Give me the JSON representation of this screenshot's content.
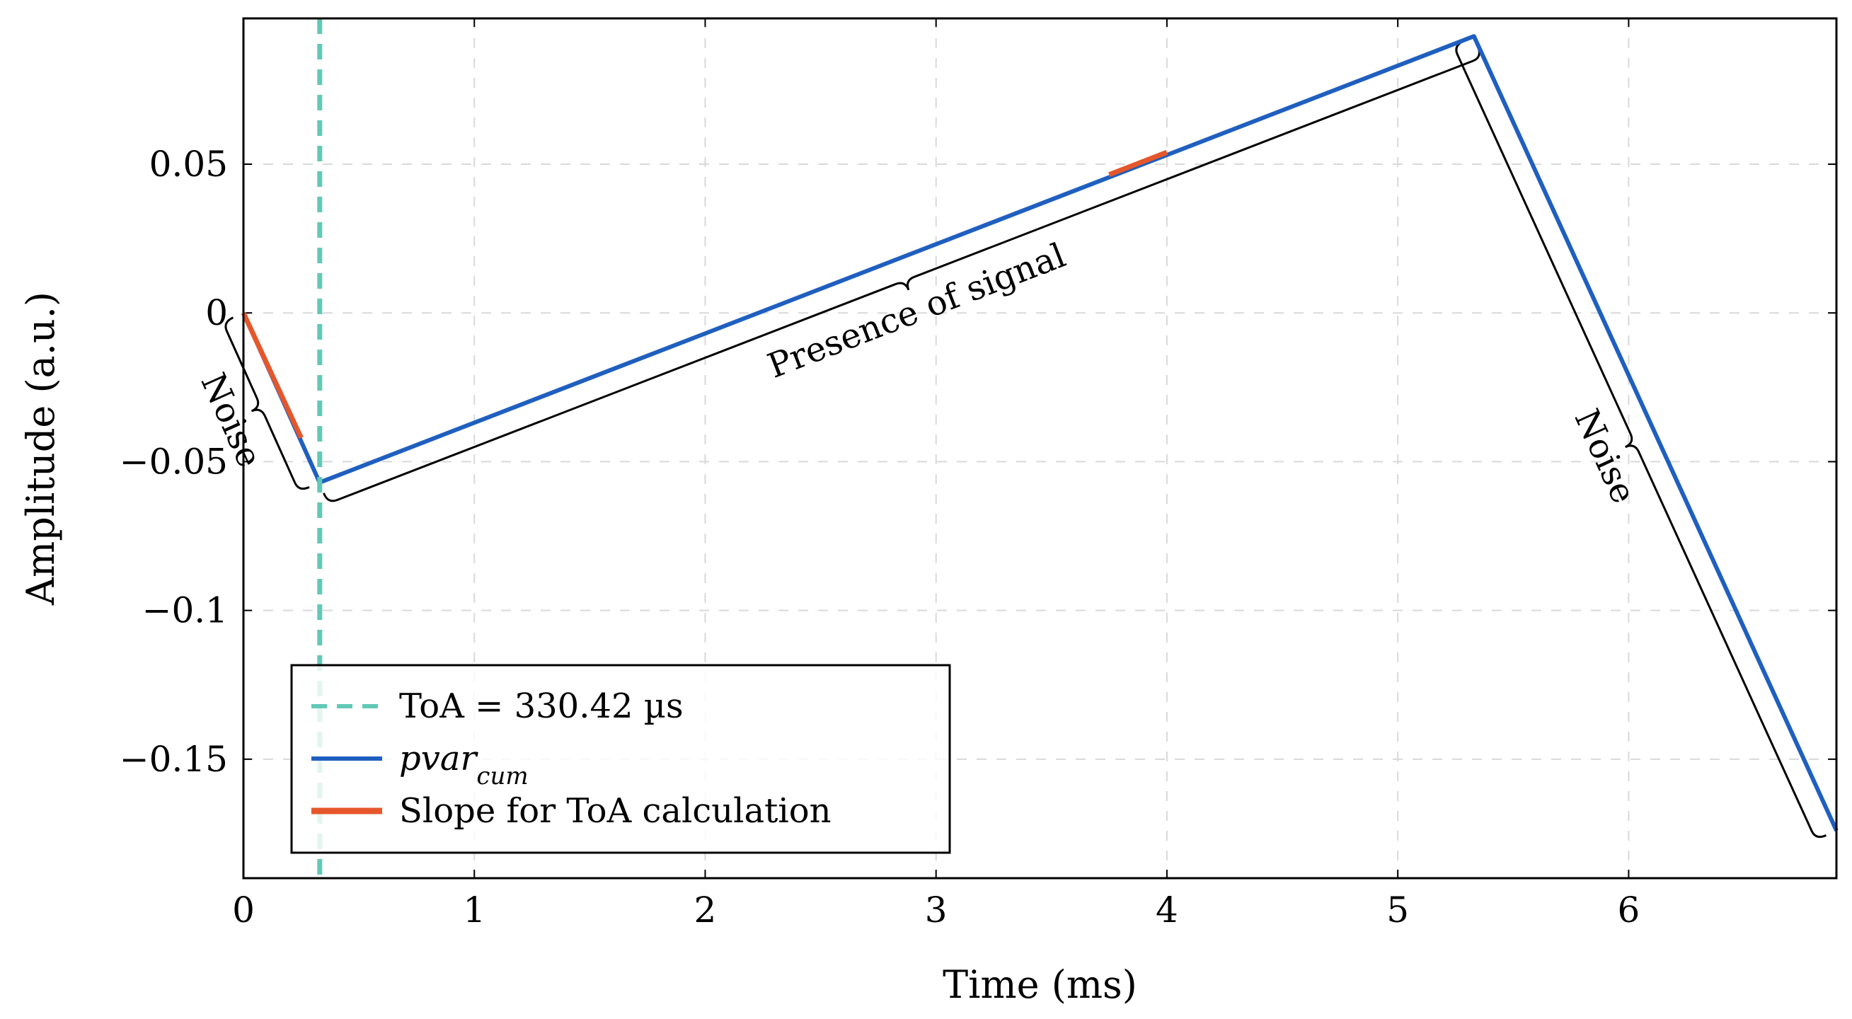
{
  "chart_data": {
    "type": "line",
    "xlabel": "Time (ms)",
    "ylabel": "Amplitude (a.u.)",
    "xlim": [
      0,
      6.9
    ],
    "ylim": [
      -0.19,
      0.099
    ],
    "grid": true,
    "x_ticks": [
      0,
      1,
      2,
      3,
      4,
      5,
      6
    ],
    "x_tick_labels": [
      "0",
      "1",
      "2",
      "3",
      "4",
      "5",
      "6"
    ],
    "y_ticks": [
      0.05,
      0,
      -0.05,
      -0.1,
      -0.15
    ],
    "y_tick_labels": [
      "0.05",
      "0",
      "−0.05",
      "−0.1",
      "−0.15"
    ],
    "series": [
      {
        "name": "pvar_cum",
        "color": "#1f5fbf",
        "x": [
          0,
          0.33,
          5.33,
          6.9
        ],
        "y": [
          0,
          -0.057,
          0.093,
          -0.174
        ]
      },
      {
        "name": "Slope for ToA calculation",
        "color": "#e5572b",
        "segments": [
          {
            "x": [
              0,
              0.25
            ],
            "y": [
              0,
              -0.042
            ]
          },
          {
            "x": [
              3.75,
              4.0
            ],
            "y": [
              0.0465,
              0.054
            ]
          }
        ]
      }
    ],
    "vline": {
      "name": "ToA",
      "x": 0.33042,
      "color": "#62c9b5"
    },
    "annotations": [
      {
        "text": "Noise",
        "from": [
          0,
          0
        ],
        "to": [
          0.33,
          -0.057
        ]
      },
      {
        "text": "Presence of signal",
        "from": [
          0.33,
          -0.057
        ],
        "to": [
          5.33,
          0.093
        ]
      },
      {
        "text": "Noise",
        "from": [
          5.33,
          0.093
        ],
        "to": [
          6.9,
          -0.174
        ]
      }
    ],
    "legend": {
      "position": "bottom-left",
      "entries": [
        {
          "label": "ToA = 330.42 µs",
          "style": "dashed",
          "color": "#62c9b5"
        },
        {
          "label": "pvar",
          "sub": "cum",
          "style": "solid",
          "color": "#1f5fbf"
        },
        {
          "label": "Slope for ToA calculation",
          "style": "solid",
          "color": "#e5572b"
        }
      ]
    }
  }
}
